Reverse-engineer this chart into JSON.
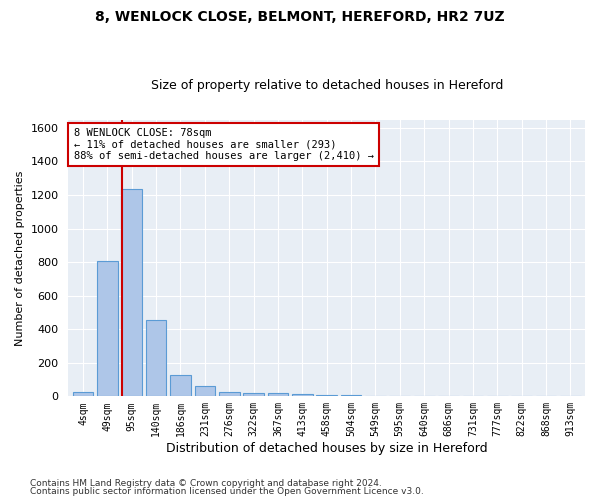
{
  "title_line1": "8, WENLOCK CLOSE, BELMONT, HEREFORD, HR2 7UZ",
  "title_line2": "Size of property relative to detached houses in Hereford",
  "xlabel": "Distribution of detached houses by size in Hereford",
  "ylabel": "Number of detached properties",
  "categories": [
    "4sqm",
    "49sqm",
    "95sqm",
    "140sqm",
    "186sqm",
    "231sqm",
    "276sqm",
    "322sqm",
    "367sqm",
    "413sqm",
    "458sqm",
    "504sqm",
    "549sqm",
    "595sqm",
    "640sqm",
    "686sqm",
    "731sqm",
    "777sqm",
    "822sqm",
    "868sqm",
    "913sqm"
  ],
  "values": [
    25,
    805,
    1235,
    455,
    125,
    60,
    28,
    22,
    18,
    14,
    8,
    5,
    2,
    1,
    1,
    0,
    0,
    0,
    0,
    0,
    0
  ],
  "bar_color": "#aec6e8",
  "bar_edge_color": "#5b9bd5",
  "vline_x": 1.62,
  "vline_color": "#cc0000",
  "ylim": [
    0,
    1650
  ],
  "yticks": [
    0,
    200,
    400,
    600,
    800,
    1000,
    1200,
    1400,
    1600
  ],
  "annotation_text": "8 WENLOCK CLOSE: 78sqm\n← 11% of detached houses are smaller (293)\n88% of semi-detached houses are larger (2,410) →",
  "annotation_box_color": "#ffffff",
  "annotation_box_edge": "#cc0000",
  "background_color": "#e8eef5",
  "footer_line1": "Contains HM Land Registry data © Crown copyright and database right 2024.",
  "footer_line2": "Contains public sector information licensed under the Open Government Licence v3.0."
}
